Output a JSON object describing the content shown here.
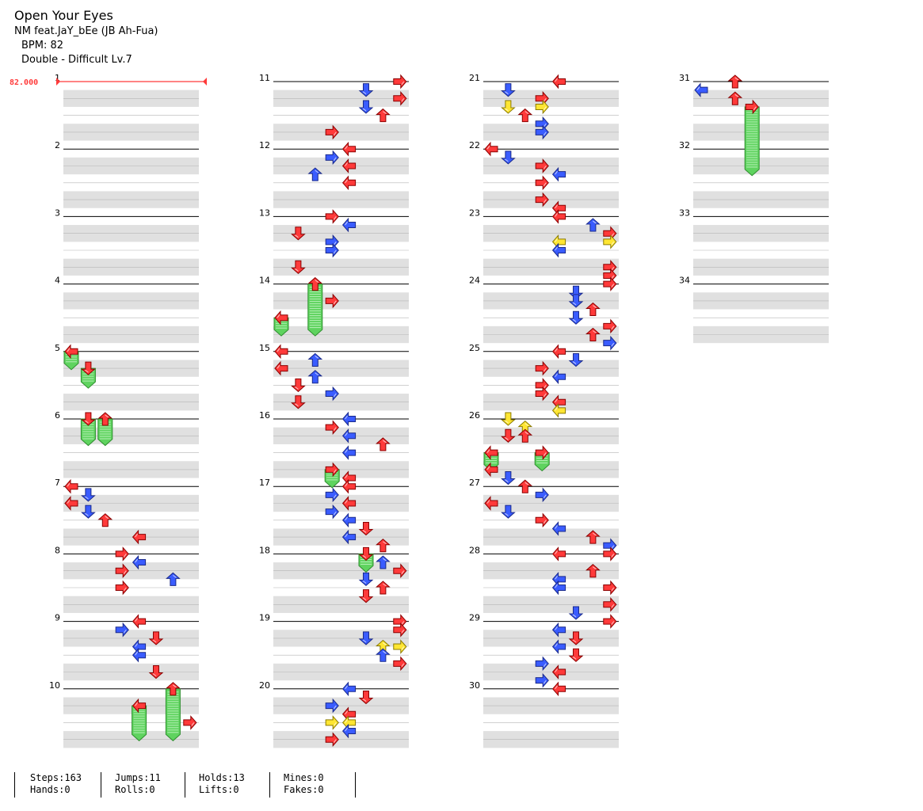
{
  "header": {
    "title": "Open Your Eyes",
    "artist": "NM feat.JaY_bEe (JB Ah-Fua)",
    "bpm": "BPM: 82",
    "chart": "Double - Difficult Lv.7"
  },
  "bpm_marker": "82.000",
  "colors": {
    "red": "#ff3a3a",
    "blue": "#3a5cff",
    "yellow": "#ffe633",
    "hold": "#5fd35f",
    "stripe": "#e0e0e0"
  },
  "stats": {
    "row1": [
      "Steps:163",
      "Jumps:11",
      "Holds:13",
      "Mines:0"
    ],
    "row2": [
      "Hands:0",
      "Rolls:0",
      "Lifts:0",
      "Fakes:0"
    ]
  },
  "chart_data": {
    "type": "table",
    "panels": [
      "left",
      "down",
      "up",
      "right",
      "left",
      "down",
      "up",
      "right"
    ],
    "measures_per_column": 10,
    "total_measures": 34,
    "measure_numbers": [
      "1",
      "2",
      "3",
      "4",
      "5",
      "6",
      "7",
      "8",
      "9",
      "10",
      "11",
      "12",
      "13",
      "14",
      "15",
      "16",
      "17",
      "18",
      "19",
      "20",
      "21",
      "22",
      "23",
      "24",
      "25",
      "26",
      "27",
      "28",
      "29",
      "30",
      "31",
      "32",
      "33",
      "34"
    ],
    "notes": [
      {
        "b": 16,
        "c": 0,
        "col": "red"
      },
      {
        "b": 17,
        "c": 1,
        "col": "red"
      },
      {
        "b": 20,
        "c": 1,
        "col": "red"
      },
      {
        "b": 20,
        "c": 2,
        "col": "red"
      },
      {
        "b": 24,
        "c": 0,
        "col": "red"
      },
      {
        "b": 24.5,
        "c": 1,
        "col": "blue"
      },
      {
        "b": 25,
        "c": 0,
        "col": "red"
      },
      {
        "b": 25.5,
        "c": 1,
        "col": "blue"
      },
      {
        "b": 26,
        "c": 2,
        "col": "red"
      },
      {
        "b": 27,
        "c": 4,
        "col": "red"
      },
      {
        "b": 28,
        "c": 3,
        "col": "red"
      },
      {
        "b": 28.5,
        "c": 4,
        "col": "blue"
      },
      {
        "b": 29,
        "c": 3,
        "col": "red"
      },
      {
        "b": 29.5,
        "c": 6,
        "col": "blue"
      },
      {
        "b": 30,
        "c": 3,
        "col": "red"
      },
      {
        "b": 32,
        "c": 4,
        "col": "red"
      },
      {
        "b": 32.5,
        "c": 3,
        "col": "blue"
      },
      {
        "b": 33,
        "c": 5,
        "col": "red"
      },
      {
        "b": 33.5,
        "c": 4,
        "col": "blue"
      },
      {
        "b": 34,
        "c": 4,
        "col": "blue"
      },
      {
        "b": 35,
        "c": 5,
        "col": "red"
      },
      {
        "b": 36,
        "c": 6,
        "col": "red"
      },
      {
        "b": 37,
        "c": 4,
        "col": "red"
      },
      {
        "b": 38,
        "c": 7,
        "col": "red"
      },
      {
        "b": 40,
        "c": 7,
        "col": "red"
      },
      {
        "b": 40.5,
        "c": 5,
        "col": "blue"
      },
      {
        "b": 41,
        "c": 7,
        "col": "red"
      },
      {
        "b": 41.5,
        "c": 5,
        "col": "blue"
      },
      {
        "b": 42,
        "c": 6,
        "col": "red"
      },
      {
        "b": 43,
        "c": 3,
        "col": "red"
      },
      {
        "b": 44,
        "c": 4,
        "col": "red"
      },
      {
        "b": 44.5,
        "c": 3,
        "col": "blue"
      },
      {
        "b": 45,
        "c": 4,
        "col": "red"
      },
      {
        "b": 45.5,
        "c": 2,
        "col": "blue"
      },
      {
        "b": 46,
        "c": 4,
        "col": "red"
      },
      {
        "b": 48,
        "c": 3,
        "col": "red"
      },
      {
        "b": 48.5,
        "c": 4,
        "col": "blue"
      },
      {
        "b": 49,
        "c": 1,
        "col": "red"
      },
      {
        "b": 49.5,
        "c": 3,
        "col": "blue"
      },
      {
        "b": 50,
        "c": 3,
        "col": "blue"
      },
      {
        "b": 51,
        "c": 1,
        "col": "red"
      },
      {
        "b": 52,
        "c": 2,
        "col": "red"
      },
      {
        "b": 53,
        "c": 3,
        "col": "red"
      },
      {
        "b": 54,
        "c": 0,
        "col": "red"
      },
      {
        "b": 56,
        "c": 0,
        "col": "red"
      },
      {
        "b": 56.5,
        "c": 2,
        "col": "blue"
      },
      {
        "b": 57,
        "c": 0,
        "col": "red"
      },
      {
        "b": 57.5,
        "c": 2,
        "col": "blue"
      },
      {
        "b": 58,
        "c": 1,
        "col": "red"
      },
      {
        "b": 58.5,
        "c": 3,
        "col": "blue"
      },
      {
        "b": 59,
        "c": 1,
        "col": "red"
      },
      {
        "b": 60,
        "c": 4,
        "col": "blue"
      },
      {
        "b": 60.5,
        "c": 3,
        "col": "red"
      },
      {
        "b": 61,
        "c": 4,
        "col": "blue"
      },
      {
        "b": 61.5,
        "c": 6,
        "col": "red"
      },
      {
        "b": 62,
        "c": 4,
        "col": "blue"
      },
      {
        "b": 63,
        "c": 3,
        "col": "red"
      },
      {
        "b": 63.5,
        "c": 4,
        "col": "red"
      },
      {
        "b": 64,
        "c": 4,
        "col": "red"
      },
      {
        "b": 64.5,
        "c": 3,
        "col": "blue"
      },
      {
        "b": 65,
        "c": 4,
        "col": "red"
      },
      {
        "b": 65.5,
        "c": 3,
        "col": "blue"
      },
      {
        "b": 66,
        "c": 4,
        "col": "blue"
      },
      {
        "b": 66.5,
        "c": 5,
        "col": "red"
      },
      {
        "b": 67,
        "c": 4,
        "col": "blue"
      },
      {
        "b": 67.5,
        "c": 6,
        "col": "red"
      },
      {
        "b": 68,
        "c": 5,
        "col": "red"
      },
      {
        "b": 68.5,
        "c": 6,
        "col": "blue"
      },
      {
        "b": 69,
        "c": 7,
        "col": "red"
      },
      {
        "b": 69.5,
        "c": 5,
        "col": "blue"
      },
      {
        "b": 70,
        "c": 6,
        "col": "red"
      },
      {
        "b": 70.5,
        "c": 5,
        "col": "red"
      },
      {
        "b": 72,
        "c": 7,
        "col": "red"
      },
      {
        "b": 72.5,
        "c": 7,
        "col": "red"
      },
      {
        "b": 73,
        "c": 5,
        "col": "blue"
      },
      {
        "b": 73.5,
        "c": 6,
        "col": "yellow"
      },
      {
        "b": 73.5,
        "c": 7,
        "col": "yellow"
      },
      {
        "b": 74,
        "c": 6,
        "col": "blue"
      },
      {
        "b": 74.5,
        "c": 7,
        "col": "red"
      },
      {
        "b": 76,
        "c": 4,
        "col": "blue"
      },
      {
        "b": 76.5,
        "c": 5,
        "col": "red"
      },
      {
        "b": 77,
        "c": 3,
        "col": "blue"
      },
      {
        "b": 77.5,
        "c": 4,
        "col": "red"
      },
      {
        "b": 78,
        "c": 3,
        "col": "yellow"
      },
      {
        "b": 78,
        "c": 4,
        "col": "yellow"
      },
      {
        "b": 78.5,
        "c": 4,
        "col": "blue"
      },
      {
        "b": 79,
        "c": 3,
        "col": "red"
      },
      {
        "b": 80,
        "c": 4,
        "col": "red"
      },
      {
        "b": 80.5,
        "c": 1,
        "col": "blue"
      },
      {
        "b": 81,
        "c": 3,
        "col": "red"
      },
      {
        "b": 81.5,
        "c": 1,
        "col": "yellow"
      },
      {
        "b": 81.5,
        "c": 3,
        "col": "yellow"
      },
      {
        "b": 82,
        "c": 2,
        "col": "red"
      },
      {
        "b": 82.5,
        "c": 3,
        "col": "blue"
      },
      {
        "b": 83,
        "c": 3,
        "col": "blue"
      },
      {
        "b": 84,
        "c": 0,
        "col": "red"
      },
      {
        "b": 84.5,
        "c": 1,
        "col": "blue"
      },
      {
        "b": 85,
        "c": 3,
        "col": "red"
      },
      {
        "b": 85.5,
        "c": 4,
        "col": "blue"
      },
      {
        "b": 86,
        "c": 3,
        "col": "red"
      },
      {
        "b": 87,
        "c": 3,
        "col": "red"
      },
      {
        "b": 87.5,
        "c": 4,
        "col": "red"
      },
      {
        "b": 88,
        "c": 4,
        "col": "red"
      },
      {
        "b": 88.5,
        "c": 6,
        "col": "blue"
      },
      {
        "b": 89,
        "c": 7,
        "col": "red"
      },
      {
        "b": 89.5,
        "c": 4,
        "col": "yellow"
      },
      {
        "b": 89.5,
        "c": 7,
        "col": "yellow"
      },
      {
        "b": 90,
        "c": 4,
        "col": "blue"
      },
      {
        "b": 91,
        "c": 7,
        "col": "red"
      },
      {
        "b": 91.5,
        "c": 7,
        "col": "red"
      },
      {
        "b": 92,
        "c": 7,
        "col": "red"
      },
      {
        "b": 92.5,
        "c": 5,
        "col": "blue"
      },
      {
        "b": 93,
        "c": 5,
        "col": "blue"
      },
      {
        "b": 93.5,
        "c": 6,
        "col": "red"
      },
      {
        "b": 94,
        "c": 5,
        "col": "blue"
      },
      {
        "b": 94.5,
        "c": 7,
        "col": "red"
      },
      {
        "b": 95,
        "c": 6,
        "col": "red"
      },
      {
        "b": 95.5,
        "c": 7,
        "col": "blue"
      },
      {
        "b": 96,
        "c": 4,
        "col": "red"
      },
      {
        "b": 96.5,
        "c": 5,
        "col": "blue"
      },
      {
        "b": 97,
        "c": 3,
        "col": "red"
      },
      {
        "b": 97.5,
        "c": 4,
        "col": "blue"
      },
      {
        "b": 98,
        "c": 3,
        "col": "red"
      },
      {
        "b": 98.5,
        "c": 3,
        "col": "red"
      },
      {
        "b": 99,
        "c": 4,
        "col": "red"
      },
      {
        "b": 99.5,
        "c": 4,
        "col": "yellow"
      },
      {
        "b": 100,
        "c": 1,
        "col": "yellow"
      },
      {
        "b": 100.5,
        "c": 2,
        "col": "yellow"
      },
      {
        "b": 101,
        "c": 1,
        "col": "red"
      },
      {
        "b": 101,
        "c": 2,
        "col": "red"
      },
      {
        "b": 102,
        "c": 0,
        "col": "red"
      },
      {
        "b": 102,
        "c": 3,
        "col": "red"
      },
      {
        "b": 103,
        "c": 0,
        "col": "red"
      },
      {
        "b": 103.5,
        "c": 1,
        "col": "blue"
      },
      {
        "b": 104,
        "c": 2,
        "col": "red"
      },
      {
        "b": 104.5,
        "c": 3,
        "col": "blue"
      },
      {
        "b": 105,
        "c": 0,
        "col": "red"
      },
      {
        "b": 105.5,
        "c": 1,
        "col": "blue"
      },
      {
        "b": 106,
        "c": 3,
        "col": "red"
      },
      {
        "b": 106.5,
        "c": 4,
        "col": "blue"
      },
      {
        "b": 107,
        "c": 6,
        "col": "red"
      },
      {
        "b": 107.5,
        "c": 7,
        "col": "blue"
      },
      {
        "b": 108,
        "c": 4,
        "col": "red"
      },
      {
        "b": 108,
        "c": 7,
        "col": "red"
      },
      {
        "b": 109,
        "c": 6,
        "col": "red"
      },
      {
        "b": 109.5,
        "c": 4,
        "col": "blue"
      },
      {
        "b": 110,
        "c": 4,
        "col": "blue"
      },
      {
        "b": 110,
        "c": 7,
        "col": "red"
      },
      {
        "b": 111,
        "c": 7,
        "col": "red"
      },
      {
        "b": 111.5,
        "c": 5,
        "col": "blue"
      },
      {
        "b": 112,
        "c": 7,
        "col": "red"
      },
      {
        "b": 112.5,
        "c": 4,
        "col": "blue"
      },
      {
        "b": 113,
        "c": 5,
        "col": "red"
      },
      {
        "b": 113.5,
        "c": 4,
        "col": "blue"
      },
      {
        "b": 114,
        "c": 5,
        "col": "red"
      },
      {
        "b": 114.5,
        "c": 3,
        "col": "blue"
      },
      {
        "b": 115,
        "c": 4,
        "col": "red"
      },
      {
        "b": 115.5,
        "c": 3,
        "col": "blue"
      },
      {
        "b": 116,
        "c": 4,
        "col": "red"
      },
      {
        "b": 120,
        "c": 2,
        "col": "red"
      },
      {
        "b": 120.5,
        "c": 0,
        "col": "blue"
      },
      {
        "b": 121,
        "c": 2,
        "col": "red"
      },
      {
        "b": 121.5,
        "c": 3,
        "col": "red"
      }
    ],
    "holds": [
      {
        "b": 16,
        "c": 0,
        "len": 0.7,
        "col": "red"
      },
      {
        "b": 17,
        "c": 1,
        "len": 0.8,
        "col": "red"
      },
      {
        "b": 20,
        "c": 1,
        "len": 1.2,
        "col": "red"
      },
      {
        "b": 20,
        "c": 2,
        "len": 1.2,
        "col": "red"
      },
      {
        "b": 52,
        "c": 2,
        "len": 2.7,
        "col": "red"
      },
      {
        "b": 54,
        "c": 0,
        "len": 0.7,
        "col": "red"
      },
      {
        "b": 63,
        "c": 3,
        "len": 0.7,
        "col": "red"
      },
      {
        "b": 68,
        "c": 5,
        "len": 0.7,
        "col": "red"
      },
      {
        "b": 36,
        "c": 6,
        "len": 2.7,
        "col": "red"
      },
      {
        "b": 37,
        "c": 4,
        "len": 1.7,
        "col": "red"
      },
      {
        "b": 102,
        "c": 0,
        "len": 0.7,
        "col": "red"
      },
      {
        "b": 102,
        "c": 3,
        "len": 0.7,
        "col": "red"
      },
      {
        "b": 121.5,
        "c": 3,
        "len": 3.7,
        "col": "red"
      }
    ]
  }
}
